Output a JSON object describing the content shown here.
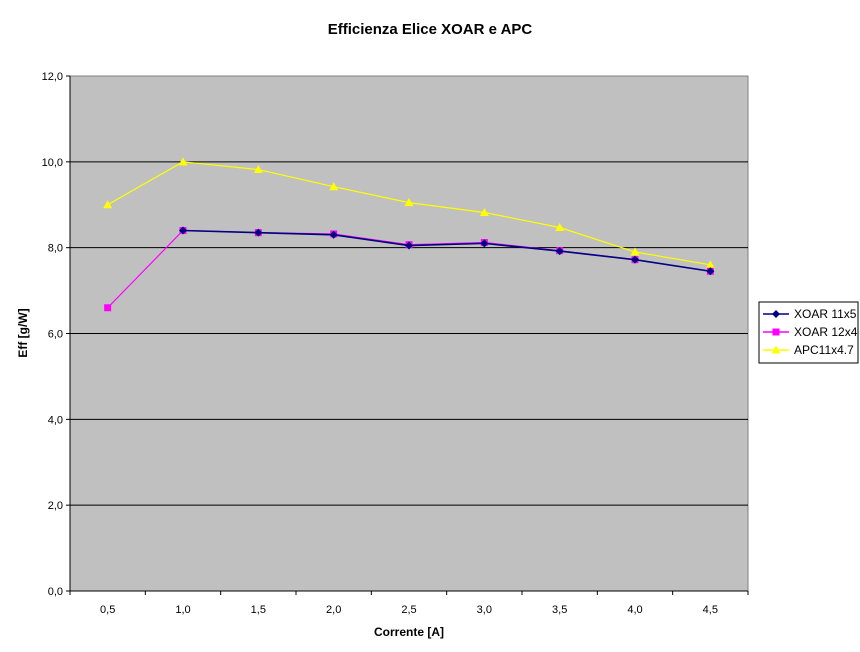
{
  "chart_data": {
    "type": "line",
    "title": "Efficienza Elice XOAR e APC",
    "xlabel": "Corrente [A]",
    "ylabel": "Eff [g/W]",
    "categories": [
      "0,5",
      "1,0",
      "1,5",
      "2,0",
      "2,5",
      "3,0",
      "3,5",
      "4,0",
      "4,5"
    ],
    "y_tick_labels": [
      "0,0",
      "2,0",
      "4,0",
      "6,0",
      "8,0",
      "10,0",
      "12,0"
    ],
    "ylim": [
      0,
      12
    ],
    "y_ticks": [
      0,
      2,
      4,
      6,
      8,
      10,
      12
    ],
    "grid": true,
    "plot_background": "#c0c0c0",
    "legend_position": "right",
    "series": [
      {
        "name": "XOAR 11x5",
        "color": "#000080",
        "marker": "diamond",
        "values": [
          null,
          8.4,
          8.35,
          8.3,
          8.05,
          8.1,
          7.92,
          7.72,
          7.45
        ]
      },
      {
        "name": "XOAR 12x4",
        "color": "#ff00ff",
        "marker": "square",
        "values": [
          6.6,
          8.4,
          8.35,
          8.32,
          8.07,
          8.12,
          7.93,
          7.72,
          7.45
        ]
      },
      {
        "name": "APC11x4.7",
        "color": "#ffff00",
        "marker": "triangle",
        "values": [
          9.0,
          10.0,
          9.82,
          9.42,
          9.05,
          8.82,
          8.47,
          7.9,
          7.6
        ]
      }
    ]
  }
}
